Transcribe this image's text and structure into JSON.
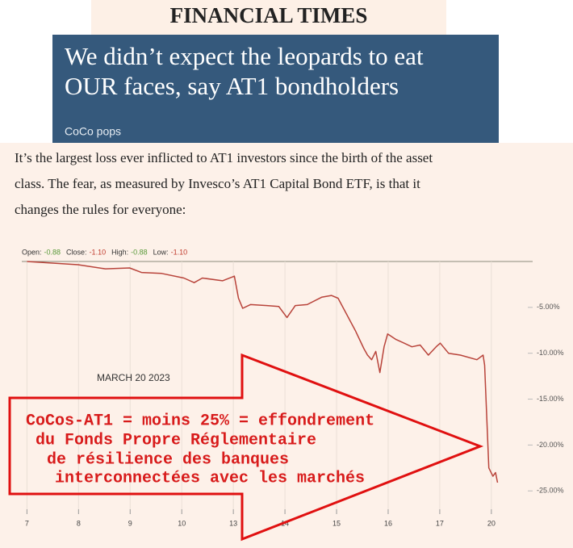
{
  "header": {
    "masthead": "FINANCIAL TIMES",
    "headline_lines": [
      "We didn’t expect the leopards to eat",
      "OUR faces, say AT1 bondholders"
    ],
    "section": "CoCo pops"
  },
  "article": {
    "lines": [
      "It’s the largest loss ever inflicted to AT1 investors since the birth of the asset",
      "class. The fear, as measured by Invesco’s AT1 Capital Bond ETF, is that it",
      "changes the rules for everyone:"
    ]
  },
  "chart_data": {
    "type": "line",
    "legend": [
      {
        "label": "Open:",
        "value": "-0.88",
        "color": "#5a9a3a"
      },
      {
        "label": "Close:",
        "value": "-1.10",
        "color": "#c0392b"
      },
      {
        "label": "High:",
        "value": "-0.88",
        "color": "#5a9a3a"
      },
      {
        "label": "Low:",
        "value": "-1.10",
        "color": "#c0392b"
      }
    ],
    "x": [
      0,
      0.99,
      1.52,
      1.99,
      2.22,
      2.61,
      3.04,
      3.24,
      3.4,
      3.79,
      4.02,
      4.1,
      4.18,
      4.33,
      4.65,
      4.88,
      5.04,
      5.2,
      5.43,
      5.71,
      5.9,
      6.03,
      6.37,
      6.53,
      6.6,
      6.68,
      6.76,
      6.84,
      6.92,
      6.99,
      7.15,
      7.31,
      7.46,
      7.62,
      7.78,
      7.93,
      8.01,
      8.17,
      8.4,
      8.72,
      8.84,
      8.87,
      8.95,
      9.03,
      9.08,
      9.12
    ],
    "values": [
      0,
      -0.35,
      -0.8,
      -0.7,
      -1.2,
      -1.3,
      -1.8,
      -2.3,
      -1.8,
      -2.1,
      -1.6,
      -4.0,
      -5.1,
      -4.7,
      -4.8,
      -4.9,
      -6.1,
      -4.8,
      -4.7,
      -3.9,
      -3.7,
      -4.0,
      -7.6,
      -9.5,
      -10.2,
      -10.7,
      -9.8,
      -12.1,
      -9.3,
      -7.9,
      -8.5,
      -8.9,
      -9.3,
      -9.1,
      -10.2,
      -9.3,
      -8.9,
      -10.0,
      -10.2,
      -10.7,
      -10.2,
      -11.3,
      -22.5,
      -23.4,
      -23.0,
      -24.1
    ],
    "color": "#b8433a",
    "xlim": [
      -0.1,
      9.8
    ],
    "xticks": [
      {
        "value": 0,
        "label": "7"
      },
      {
        "value": 1,
        "label": "8"
      },
      {
        "value": 2,
        "label": "9"
      },
      {
        "value": 3,
        "label": "10"
      },
      {
        "value": 4,
        "label": "13"
      },
      {
        "value": 5,
        "label": "14"
      },
      {
        "value": 6,
        "label": "15"
      },
      {
        "value": 7,
        "label": "16"
      },
      {
        "value": 8,
        "label": "17"
      },
      {
        "value": 9,
        "label": "20"
      }
    ],
    "ylim": [
      -27,
      0
    ],
    "yticks": [
      {
        "value": -5,
        "label": "-5.00%"
      },
      {
        "value": -10,
        "label": "-10.00%"
      },
      {
        "value": -15,
        "label": "-15.00%"
      },
      {
        "value": -20,
        "label": "-20.00%"
      },
      {
        "value": -25,
        "label": "-25.00%"
      }
    ],
    "grid": true,
    "annotation": "MARCH 20 2023"
  },
  "overlay": {
    "lines": [
      "CoCos-AT1 = moins 25% = effondrement",
      "du Fonds Propre Réglementaire",
      "de résilience des banques",
      "interconnectées avec les marchés"
    ]
  }
}
